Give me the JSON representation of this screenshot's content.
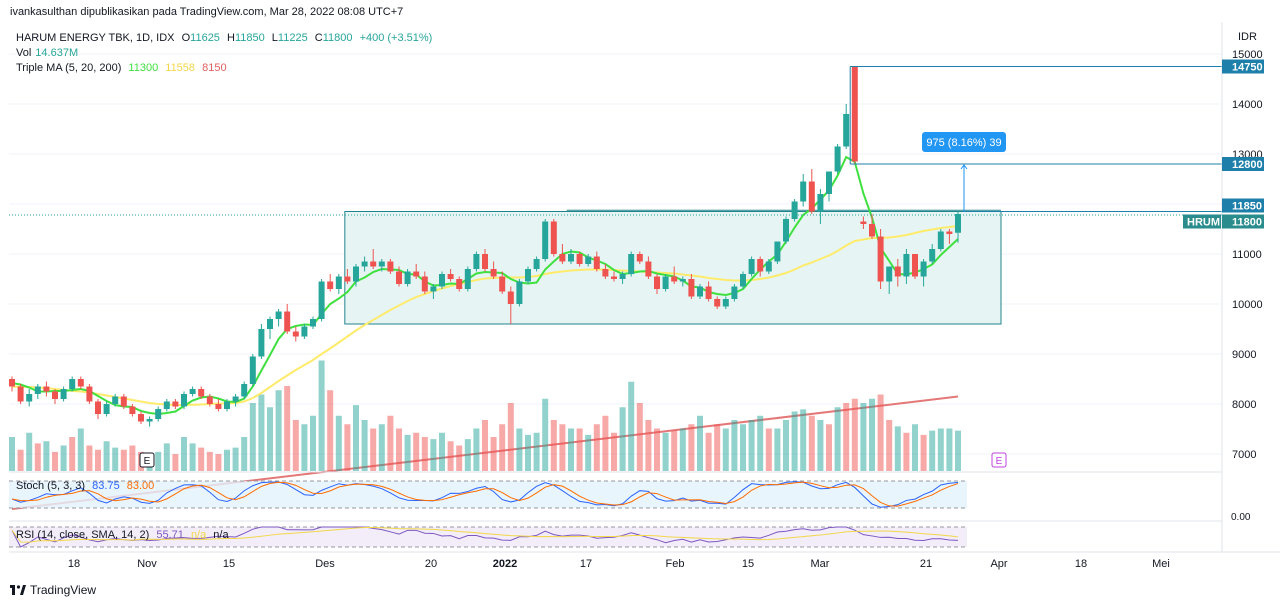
{
  "publisher_line": "ivankasulthan dipublikasikan pada TradingView.com, Mar 28, 2022 08:08 UTC+7",
  "currency": "IDR",
  "legend": {
    "symbol": "HARUM ENERGY TBK, 1D, IDX",
    "ohlc": {
      "o_label": "O",
      "o": "11625",
      "h_label": "H",
      "h": "11850",
      "l_label": "L",
      "l": "11225",
      "c_label": "C",
      "c": "11800",
      "change": "+400 (+3.51%)"
    },
    "vol_label": "Vol",
    "vol_value": "14.637M",
    "ma_label": "Triple MA (5, 20, 200)",
    "ma5": "11300",
    "ma20": "11558",
    "ma200": "8150"
  },
  "colors": {
    "up": "#26a69a",
    "down": "#ef5350",
    "ma5": "#3fe03f",
    "ma20": "#ffeb6b",
    "ma200": "#e06060",
    "accent": "#2196f3",
    "range_border": "#21848b",
    "range_fill": "#e6f5f4",
    "label_bg": "#1e80aa",
    "hrum_bg": "#2a8c8c"
  },
  "measure_label": "975 (8.16%) 39",
  "stoch_label": "Stoch (5, 3, 3)",
  "stoch_k": "83.75",
  "stoch_d": "83.00",
  "rsi_label": "RSI (14, close, SMA, 14, 2)",
  "rsi_value": "55.71",
  "rsi_na1": "n/a",
  "rsi_na2": "n/a",
  "stoch_axis_label": "0.00",
  "footer_brand": "TradingView",
  "e_marker": "E",
  "price_labels": {
    "p14750": "14750",
    "p12800": "12800",
    "p11850": "11850",
    "hrum_name": "HRUM",
    "hrum_price": "11800"
  },
  "chart_data": {
    "type": "candlestick",
    "y_axis_ticks": [
      15000,
      14000,
      13000,
      12000,
      11000,
      10000,
      9000,
      8000,
      7000
    ],
    "y_axis_tick_labels": [
      "15000",
      "14000",
      "13000",
      "12000",
      "11000",
      "10000",
      "9000",
      "8000",
      "7000"
    ],
    "x_axis_labels": [
      "18",
      "Nov",
      "15",
      "Des",
      "20",
      "2022",
      "17",
      "Feb",
      "15",
      "Mar",
      "21",
      "Apr",
      "18",
      "Mei"
    ],
    "bold_x_label": "2022",
    "ylim": [
      6650,
      15300
    ],
    "candles": [
      [
        8500,
        8550,
        8250,
        8350
      ],
      [
        8350,
        8400,
        8000,
        8050
      ],
      [
        8050,
        8300,
        7950,
        8200
      ],
      [
        8200,
        8400,
        8100,
        8350
      ],
      [
        8350,
        8450,
        8150,
        8250
      ],
      [
        8250,
        8300,
        8000,
        8100
      ],
      [
        8100,
        8350,
        8050,
        8300
      ],
      [
        8300,
        8550,
        8250,
        8500
      ],
      [
        8500,
        8550,
        8300,
        8350
      ],
      [
        8350,
        8400,
        8000,
        8050
      ],
      [
        8050,
        8100,
        7700,
        7800
      ],
      [
        7800,
        8050,
        7750,
        8000
      ],
      [
        8000,
        8200,
        7950,
        8150
      ],
      [
        8150,
        8200,
        7900,
        7950
      ],
      [
        7950,
        8000,
        7750,
        7800
      ],
      [
        7800,
        7850,
        7600,
        7650
      ],
      [
        7650,
        7750,
        7550,
        7700
      ],
      [
        7700,
        7950,
        7650,
        7900
      ],
      [
        7900,
        8100,
        7850,
        8050
      ],
      [
        8050,
        8100,
        7900,
        7950
      ],
      [
        7950,
        8250,
        7900,
        8200
      ],
      [
        8200,
        8350,
        8150,
        8300
      ],
      [
        8300,
        8350,
        8100,
        8150
      ],
      [
        8150,
        8200,
        7950,
        8000
      ],
      [
        8000,
        8100,
        7850,
        7900
      ],
      [
        7900,
        8100,
        7850,
        8050
      ],
      [
        8050,
        8200,
        7950,
        8150
      ],
      [
        8150,
        8450,
        8100,
        8400
      ],
      [
        8400,
        9000,
        8350,
        8950
      ],
      [
        8950,
        9600,
        8900,
        9500
      ],
      [
        9500,
        9750,
        9300,
        9700
      ],
      [
        9700,
        9900,
        9550,
        9850
      ],
      [
        9850,
        10000,
        9400,
        9450
      ],
      [
        9450,
        9550,
        9250,
        9350
      ],
      [
        9350,
        9600,
        9300,
        9550
      ],
      [
        9550,
        9750,
        9500,
        9700
      ],
      [
        9700,
        10500,
        9650,
        10450
      ],
      [
        10450,
        10600,
        10250,
        10300
      ],
      [
        10300,
        10600,
        10200,
        10550
      ],
      [
        10550,
        10700,
        10400,
        10450
      ],
      [
        10450,
        10800,
        10350,
        10750
      ],
      [
        10750,
        10950,
        10650,
        10850
      ],
      [
        10850,
        11100,
        10700,
        10750
      ],
      [
        10750,
        10900,
        10650,
        10850
      ],
      [
        10850,
        10900,
        10600,
        10650
      ],
      [
        10650,
        10750,
        10350,
        10400
      ],
      [
        10400,
        10700,
        10350,
        10650
      ],
      [
        10650,
        10800,
        10500,
        10550
      ],
      [
        10550,
        10650,
        10200,
        10250
      ],
      [
        10250,
        10400,
        10100,
        10350
      ],
      [
        10350,
        10650,
        10300,
        10600
      ],
      [
        10600,
        10700,
        10450,
        10500
      ],
      [
        10500,
        10550,
        10250,
        10300
      ],
      [
        10300,
        10750,
        10250,
        10700
      ],
      [
        10700,
        11050,
        10650,
        11000
      ],
      [
        11000,
        11100,
        10650,
        10700
      ],
      [
        10700,
        10850,
        10500,
        10550
      ],
      [
        10550,
        10650,
        10200,
        10250
      ],
      [
        10250,
        10350,
        9600,
        10000
      ],
      [
        10000,
        10500,
        9950,
        10450
      ],
      [
        10450,
        10750,
        10400,
        10700
      ],
      [
        10700,
        10950,
        10650,
        10900
      ],
      [
        10900,
        11700,
        10850,
        11650
      ],
      [
        11650,
        11700,
        10950,
        11000
      ],
      [
        11000,
        11200,
        10800,
        10850
      ],
      [
        10850,
        11100,
        10800,
        11000
      ],
      [
        11000,
        11050,
        10750,
        10800
      ],
      [
        10800,
        11000,
        10750,
        10950
      ],
      [
        10950,
        11050,
        10650,
        10700
      ],
      [
        10700,
        10800,
        10500,
        10550
      ],
      [
        10550,
        10650,
        10450,
        10500
      ],
      [
        10500,
        10650,
        10400,
        10600
      ],
      [
        10600,
        11050,
        10550,
        11000
      ],
      [
        11000,
        11050,
        10800,
        10850
      ],
      [
        10850,
        10950,
        10500,
        10550
      ],
      [
        10550,
        10600,
        10200,
        10300
      ],
      [
        10300,
        10600,
        10250,
        10550
      ],
      [
        10550,
        10750,
        10400,
        10450
      ],
      [
        10450,
        10550,
        10350,
        10500
      ],
      [
        10500,
        10600,
        10100,
        10150
      ],
      [
        10150,
        10400,
        10100,
        10350
      ],
      [
        10350,
        10450,
        10050,
        10100
      ],
      [
        10100,
        10150,
        9900,
        9950
      ],
      [
        9950,
        10150,
        9900,
        10100
      ],
      [
        10100,
        10400,
        10050,
        10350
      ],
      [
        10350,
        10650,
        10300,
        10600
      ],
      [
        10600,
        10950,
        10550,
        10900
      ],
      [
        10900,
        10950,
        10550,
        10650
      ],
      [
        10650,
        10900,
        10600,
        10850
      ],
      [
        10850,
        11250,
        10800,
        11250
      ],
      [
        11250,
        11750,
        11200,
        11700
      ],
      [
        11700,
        12100,
        11650,
        12050
      ],
      [
        12050,
        12600,
        11950,
        12450
      ],
      [
        12450,
        12700,
        11800,
        11850
      ],
      [
        11850,
        12300,
        11600,
        12200
      ],
      [
        12200,
        12650,
        12050,
        12650
      ],
      [
        12650,
        13200,
        12600,
        13150
      ],
      [
        13150,
        14000,
        13100,
        13800
      ],
      [
        14750,
        14750,
        12800,
        12850
      ],
      [
        11650,
        11750,
        11500,
        11600
      ],
      [
        11600,
        11800,
        11300,
        11350
      ],
      [
        11350,
        11500,
        10300,
        10450
      ],
      [
        10450,
        10700,
        10200,
        10750
      ],
      [
        10750,
        10900,
        10350,
        10550
      ],
      [
        10550,
        11100,
        10400,
        11000
      ],
      [
        11000,
        11000,
        10500,
        10550
      ],
      [
        10550,
        10900,
        10350,
        10850
      ],
      [
        10850,
        11200,
        10800,
        11100
      ],
      [
        11100,
        11500,
        11050,
        11450
      ],
      [
        11450,
        11500,
        11200,
        11400
      ],
      [
        11425,
        11850,
        11225,
        11800
      ]
    ],
    "ma5": [
      8420,
      8390,
      8330,
      8250,
      8250,
      8260,
      8260,
      8280,
      8300,
      8260,
      8160,
      8060,
      7980,
      7950,
      7940,
      7860,
      7820,
      7800,
      7820,
      7850,
      7960,
      8070,
      8130,
      8150,
      8110,
      8050,
      8040,
      8110,
      8350,
      8670,
      8980,
      9300,
      9500,
      9560,
      9590,
      9580,
      9800,
      10000,
      10110,
      10240,
      10450,
      10530,
      10640,
      10700,
      10690,
      10680,
      10600,
      10590,
      10450,
      10370,
      10380,
      10410,
      10400,
      10500,
      10610,
      10640,
      10630,
      10620,
      10500,
      10430,
      10410,
      10430,
      10690,
      10850,
      11000,
      11050,
      11030,
      10930,
      10870,
      10800,
      10680,
      10600,
      10620,
      10650,
      10660,
      10610,
      10580,
      10550,
      10470,
      10350,
      10330,
      10240,
      10200,
      10180,
      10220,
      10300,
      10500,
      10690,
      10850,
      10990,
      11250,
      11530,
      11780,
      11910,
      12090,
      12270,
      12570,
      12940,
      12840,
      12210,
      11730,
      11120,
      10860,
      10600,
      10590,
      10630,
      10700,
      10790,
      10980,
      11140,
      11300
    ],
    "ma20": [
      8350,
      8345,
      8340,
      8330,
      8320,
      8300,
      8280,
      8260,
      8250,
      8230,
      8200,
      8170,
      8140,
      8110,
      8080,
      8050,
      8020,
      8000,
      7990,
      7980,
      7980,
      7985,
      7990,
      8000,
      8010,
      8010,
      8020,
      8050,
      8120,
      8220,
      8340,
      8460,
      8570,
      8680,
      8780,
      8880,
      9000,
      9110,
      9230,
      9350,
      9470,
      9580,
      9680,
      9780,
      9880,
      9970,
      10060,
      10140,
      10200,
      10260,
      10310,
      10360,
      10400,
      10440,
      10480,
      10510,
      10520,
      10530,
      10530,
      10530,
      10540,
      10560,
      10600,
      10630,
      10650,
      10670,
      10680,
      10690,
      10690,
      10690,
      10680,
      10670,
      10660,
      10650,
      10640,
      10630,
      10620,
      10610,
      10590,
      10570,
      10550,
      10520,
      10500,
      10480,
      10470,
      10470,
      10480,
      10500,
      10530,
      10570,
      10620,
      10690,
      10770,
      10830,
      10900,
      10970,
      11060,
      11170,
      11260,
      11290,
      11320,
      11320,
      11330,
      11350,
      11380,
      11420,
      11460,
      11490,
      11520,
      11540,
      11558
    ],
    "ma200_endpoints": [
      [
        0,
        5900
      ],
      [
        110,
        8150
      ]
    ],
    "volume": [
      [
        0,
        800
      ],
      [
        1,
        500
      ],
      [
        0,
        900
      ],
      [
        1,
        650
      ],
      [
        0,
        700
      ],
      [
        1,
        450
      ],
      [
        0,
        600
      ],
      [
        1,
        800
      ],
      [
        0,
        1000
      ],
      [
        1,
        600
      ],
      [
        1,
        500
      ],
      [
        0,
        700
      ],
      [
        0,
        550
      ],
      [
        1,
        500
      ],
      [
        1,
        600
      ],
      [
        1,
        450
      ],
      [
        0,
        300
      ],
      [
        0,
        450
      ],
      [
        0,
        650
      ],
      [
        1,
        400
      ],
      [
        0,
        800
      ],
      [
        0,
        650
      ],
      [
        1,
        550
      ],
      [
        1,
        450
      ],
      [
        1,
        400
      ],
      [
        0,
        500
      ],
      [
        0,
        550
      ],
      [
        0,
        800
      ],
      [
        0,
        1600
      ],
      [
        0,
        1800
      ],
      [
        0,
        1500
      ],
      [
        0,
        1900
      ],
      [
        1,
        2000
      ],
      [
        1,
        1200
      ],
      [
        0,
        1100
      ],
      [
        0,
        1300
      ],
      [
        0,
        2600
      ],
      [
        1,
        1900
      ],
      [
        0,
        1300
      ],
      [
        1,
        1100
      ],
      [
        0,
        1550
      ],
      [
        0,
        1200
      ],
      [
        1,
        1000
      ],
      [
        0,
        1100
      ],
      [
        1,
        1300
      ],
      [
        1,
        1000
      ],
      [
        0,
        850
      ],
      [
        1,
        900
      ],
      [
        1,
        800
      ],
      [
        0,
        750
      ],
      [
        0,
        900
      ],
      [
        1,
        700
      ],
      [
        1,
        600
      ],
      [
        0,
        750
      ],
      [
        0,
        1000
      ],
      [
        1,
        1200
      ],
      [
        1,
        800
      ],
      [
        1,
        1100
      ],
      [
        1,
        1600
      ],
      [
        0,
        1000
      ],
      [
        0,
        850
      ],
      [
        0,
        900
      ],
      [
        0,
        1700
      ],
      [
        1,
        1200
      ],
      [
        1,
        1100
      ],
      [
        0,
        1000
      ],
      [
        1,
        1000
      ],
      [
        0,
        850
      ],
      [
        1,
        1100
      ],
      [
        1,
        1300
      ],
      [
        1,
        900
      ],
      [
        0,
        1500
      ],
      [
        0,
        2100
      ],
      [
        1,
        1600
      ],
      [
        1,
        1200
      ],
      [
        1,
        1000
      ],
      [
        0,
        900
      ],
      [
        1,
        950
      ],
      [
        0,
        1000
      ],
      [
        1,
        1100
      ],
      [
        0,
        1300
      ],
      [
        1,
        900
      ],
      [
        1,
        1100
      ],
      [
        0,
        1000
      ],
      [
        0,
        1200
      ],
      [
        0,
        1100
      ],
      [
        0,
        1200
      ],
      [
        0,
        1300
      ],
      [
        1,
        1000
      ],
      [
        0,
        1000
      ],
      [
        0,
        1200
      ],
      [
        0,
        1400
      ],
      [
        0,
        1450
      ],
      [
        1,
        1300
      ],
      [
        0,
        1200
      ],
      [
        1,
        1100
      ],
      [
        0,
        1500
      ],
      [
        1,
        1600
      ],
      [
        1,
        1700
      ],
      [
        0,
        1600
      ],
      [
        0,
        1700
      ],
      [
        1,
        1800
      ],
      [
        1,
        1200
      ],
      [
        0,
        1050
      ],
      [
        1,
        900
      ],
      [
        0,
        1100
      ],
      [
        1,
        850
      ],
      [
        0,
        950
      ],
      [
        0,
        1000
      ],
      [
        0,
        1000
      ],
      [
        0,
        950
      ]
    ],
    "stoch_range": [
      0,
      100
    ],
    "rsi_range": [
      20,
      80
    ]
  }
}
